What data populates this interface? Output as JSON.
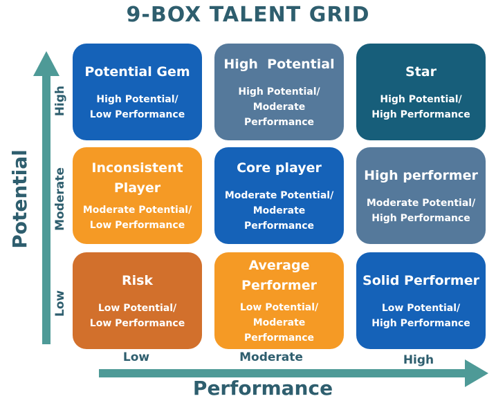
{
  "title": "9-BOX TALENT GRID",
  "axes": {
    "y_title": "Potential",
    "x_title": "Performance",
    "y_ticks": [
      "High",
      "Moderate",
      "Low"
    ],
    "x_ticks": [
      "Low",
      "Moderate",
      "High"
    ]
  },
  "colors": {
    "title": "#2e5e6e",
    "arrow": "#4e9a97",
    "dark_blue": "#1562b8",
    "slate_blue": "#55799b",
    "navy": "#175e7a",
    "orange": "#f59a25",
    "burnt_orange": "#d2702c"
  },
  "boxes": [
    {
      "name": "Potential Gem",
      "line1": "High Potential/",
      "line2": "Low Performance",
      "color": "#1562b8"
    },
    {
      "name": "High  Potential",
      "line1": "High Potential/",
      "line2": "Moderate Performance",
      "color": "#55799b"
    },
    {
      "name": "Star",
      "line1": "High Potential/",
      "line2": "High Performance",
      "color": "#175e7a"
    },
    {
      "name": "Inconsistent Player",
      "line1": "Moderate Potential/",
      "line2": "Low Performance",
      "color": "#f59a25"
    },
    {
      "name": "Core player",
      "line1": "Moderate Potential/",
      "line2": "Moderate Performance",
      "color": "#1562b8"
    },
    {
      "name": "High performer",
      "line1": "Moderate Potential/",
      "line2": "High Performance",
      "color": "#55799b"
    },
    {
      "name": "Risk",
      "line1": "Low Potential/",
      "line2": "Low Performance",
      "color": "#d2702c"
    },
    {
      "name": "Average Performer",
      "line1": "Low Potential/",
      "line2": "Moderate Performance",
      "color": "#f59a25"
    },
    {
      "name": "Solid Performer",
      "line1": "Low Potential/",
      "line2": "High Performance",
      "color": "#1562b8"
    }
  ]
}
